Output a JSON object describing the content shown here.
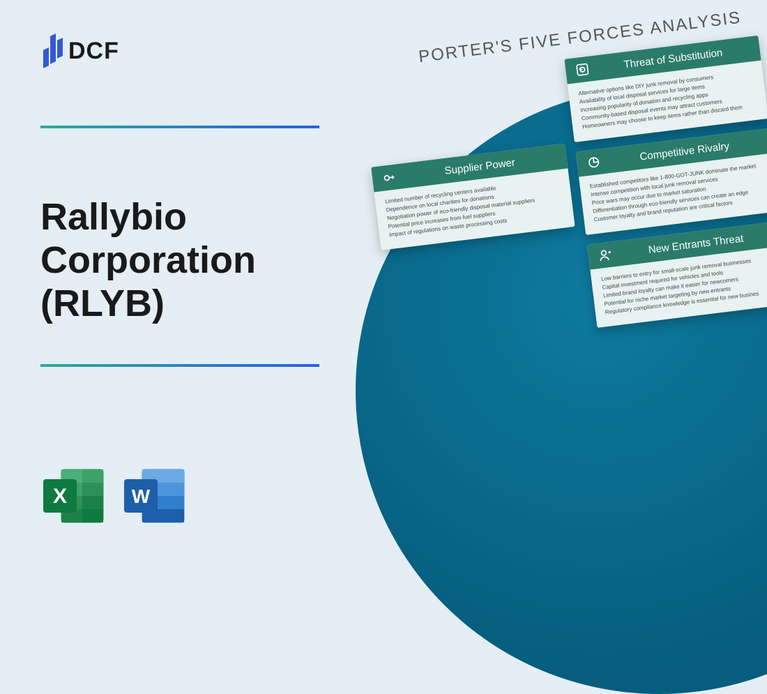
{
  "logo": {
    "text": "DCF",
    "bar_color": "#3558d4"
  },
  "divider_gradient": [
    "#2fa99a",
    "#2b5fe0"
  ],
  "title": "Rallybio Corporation (RLYB)",
  "deck_title": "PORTER'S FIVE FORCES ANALYSIS",
  "card_header_color": "#2a7b6a",
  "circle_color": "#0b6f92",
  "cards": {
    "supplier_power": {
      "title": "Supplier Power",
      "lines": [
        "Limited number of recycling centers available",
        "Dependence on local charities for donations",
        "Negotiation power of eco-friendly disposal material suppliers",
        "Potential price increases from fuel suppliers",
        "Impact of regulations on waste processing costs"
      ]
    },
    "threat_substitution": {
      "title": "Threat of Substitution",
      "lines": [
        "Alternative options like DIY junk removal by consumers",
        "Availability of local disposal services for large items",
        "Increasing popularity of donation and recycling apps",
        "Community-based disposal events may attract customers",
        "Homeowners may choose to keep items rather than discard them"
      ]
    },
    "competitive_rivalry": {
      "title": "Competitive Rivalry",
      "lines": [
        "Established competitors like 1-800-GOT-JUNK dominate the market",
        "Intense competition with local junk removal services",
        "Price wars may occur due to market saturation",
        "Differentiation through eco-friendly services can create an edge",
        "Customer loyalty and brand reputation are critical factors"
      ]
    },
    "new_entrants": {
      "title": "New Entrants Threat",
      "lines": [
        "Low barriers to entry for small-scale junk removal businesses",
        "Capital investment required for vehicles and tools",
        "Limited brand loyalty can make it easier for newcomers",
        "Potential for niche market targeting by new entrants",
        "Regulatory compliance knowledge is essential for new busines"
      ]
    }
  },
  "excel": {
    "bg1": "#1a9e5c",
    "bg2": "#0e7a3f",
    "letter": "X",
    "panel": "#d9ead3"
  },
  "word": {
    "bg1": "#3a8ad6",
    "bg2": "#1d5fab",
    "letter": "W",
    "panel": "#cfe2f3"
  }
}
